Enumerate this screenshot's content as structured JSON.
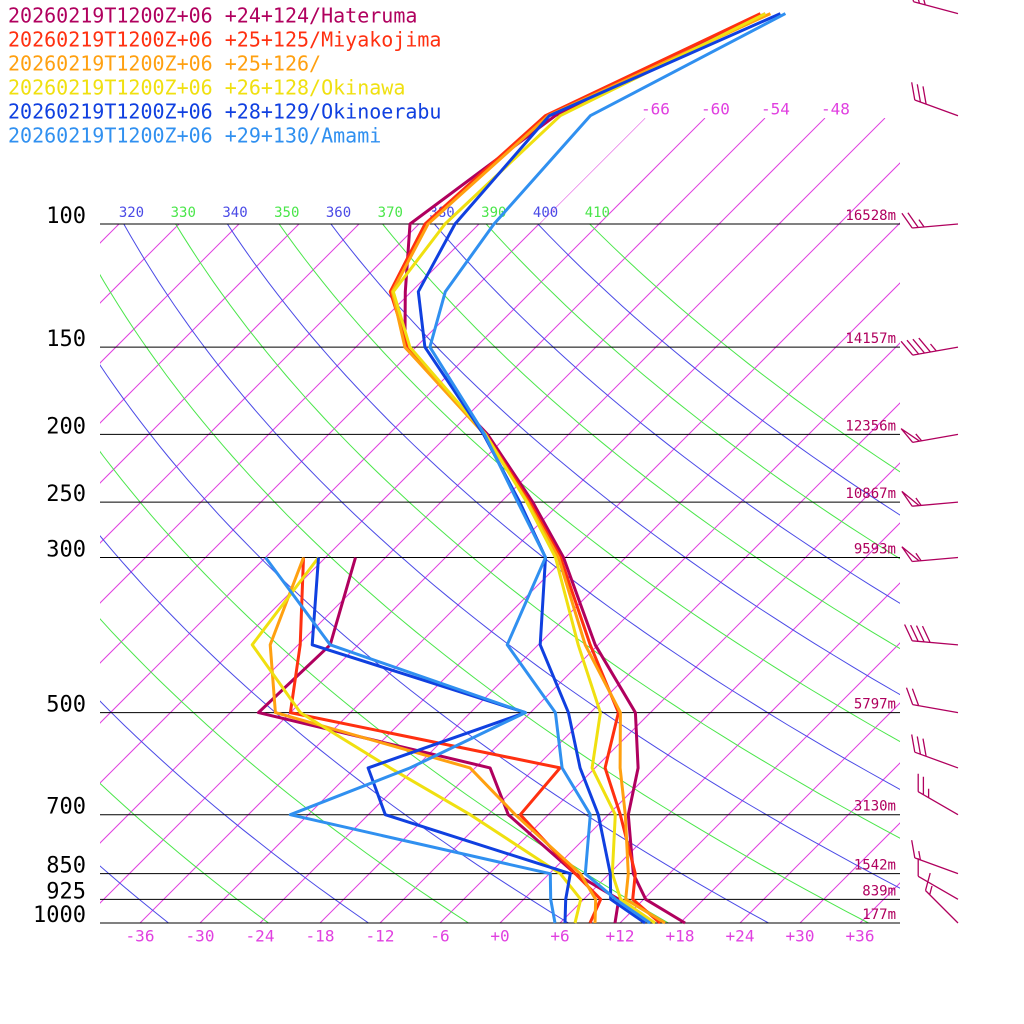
{
  "chart_data": {
    "type": "skewt",
    "skew_angle": 45,
    "log_y": true,
    "ylim": [
      1000,
      100
    ],
    "xlim": [
      -40,
      40
    ],
    "yticks": [
      100,
      150,
      200,
      250,
      300,
      500,
      700,
      850,
      925,
      1000
    ],
    "height_labels": [
      "16528m",
      "14157m",
      "12356m",
      "10867m",
      "9593m",
      "5797m",
      "3130m",
      "1542m",
      "839m",
      "177m"
    ],
    "xticks": [
      -36,
      -30,
      -24,
      -18,
      -12,
      -6,
      {
        "value": 0,
        "label": "+0"
      },
      {
        "value": 6,
        "label": "+6"
      },
      {
        "value": 12,
        "label": "+12"
      },
      {
        "value": 18,
        "label": "+18"
      },
      {
        "value": 24,
        "label": "+24"
      },
      {
        "value": 30,
        "label": "+30"
      },
      {
        "value": 36,
        "label": "+36"
      }
    ],
    "isotherm_labels": [
      -66,
      -60,
      -54,
      -48
    ],
    "theta_labels": [
      320,
      330,
      340,
      350,
      360,
      370,
      380,
      390,
      400,
      410
    ],
    "isotherm_color": "#e040e0",
    "theta_colors": [
      "#4a4ae6",
      "#4ae64a"
    ],
    "pressure": [
      1000,
      925,
      850,
      700,
      600,
      500,
      400,
      300,
      250,
      200,
      150,
      125,
      100,
      70,
      50
    ],
    "series": [
      {
        "name": "20260219T1200Z+06 +24+124/Hateruma",
        "color": "#b0005e",
        "temperature": [
          18.5,
          12.2,
          8.4,
          2.0,
          -1.7,
          -7.5,
          -18.3,
          -30.2,
          -38.8,
          -50.1,
          -67.1,
          -72.6,
          -78.9,
          -75.2,
          -64.4
        ],
        "dewpoint": [
          11.5,
          9.5,
          2.6,
          -10.0,
          -16.5,
          -45.2,
          -44.8,
          -51.0,
          null,
          null,
          null,
          null,
          null,
          null,
          null
        ]
      },
      {
        "name": "20260219T1200Z+06 +25+125/Miyakojima",
        "color": "#ff3010",
        "temperature": [
          16.0,
          10.9,
          8.6,
          1.2,
          -5.0,
          -9.2,
          -18.8,
          -30.5,
          -39.1,
          -50.3,
          -66.8,
          -74.1,
          -77.4,
          -76.2,
          -64.9
        ],
        "dewpoint": [
          9.0,
          7.7,
          2.6,
          -8.8,
          -9.5,
          -42.0,
          -47.8,
          -56.2,
          null,
          null,
          null,
          null,
          null,
          null,
          null
        ]
      },
      {
        "name": "20260219T1200Z+06 +25+126/",
        "color": "#ffa010",
        "temperature": [
          16.5,
          10.2,
          7.9,
          1.7,
          -3.5,
          -9.0,
          -19.3,
          -30.7,
          -39.3,
          -50.4,
          -67.1,
          -73.9,
          -77.1,
          -75.9,
          -63.9
        ],
        "dewpoint": [
          9.5,
          7.2,
          3.1,
          -9.3,
          -18.5,
          -43.5,
          -50.8,
          -56.2,
          null,
          null,
          null,
          null,
          null,
          null,
          null
        ]
      },
      {
        "name": "20260219T1200Z+06 +26+128/Okinawa",
        "color": "#f0e010",
        "temperature": [
          15.5,
          9.7,
          6.3,
          0.7,
          -6.3,
          -11.0,
          -20.0,
          -31.0,
          -39.4,
          -50.3,
          -66.6,
          -73.8,
          -75.4,
          -74.7,
          -64.4
        ],
        "dewpoint": [
          7.5,
          5.7,
          1.1,
          -13.8,
          -26.5,
          -41.0,
          -52.6,
          -54.7,
          null,
          null,
          null,
          null,
          null,
          null,
          null
        ]
      },
      {
        "name": "20260219T1200Z+06 +28+129/Okinoerabu",
        "color": "#1040e0",
        "temperature": [
          14.5,
          8.7,
          6.1,
          -1.0,
          -7.5,
          -14.2,
          -23.8,
          -32.0,
          -40.1,
          -50.5,
          -65.1,
          -71.3,
          -74.4,
          -75.8,
          -62.9
        ],
        "dewpoint": [
          6.5,
          4.2,
          2.1,
          -22.3,
          -28.7,
          -18.5,
          -46.6,
          -54.7,
          null,
          null,
          null,
          null,
          null,
          null,
          null
        ]
      },
      {
        "name": "20260219T1200Z+06 +29+130/Amami",
        "color": "#3090f0",
        "temperature": [
          15.0,
          9.2,
          3.6,
          -1.8,
          -9.3,
          -15.5,
          -27.1,
          -32.0,
          -40.3,
          -50.4,
          -64.6,
          -68.6,
          -70.5,
          -71.7,
          -62.4
        ],
        "dewpoint": [
          5.5,
          2.7,
          0.1,
          -31.8,
          -24.5,
          -18.5,
          -44.8,
          -60.0,
          null,
          null,
          null,
          null,
          null,
          null,
          null
        ]
      }
    ],
    "winds": {
      "color": "#b0005e",
      "pressure": [
        1000,
        925,
        850,
        700,
        600,
        500,
        400,
        300,
        250,
        200,
        150,
        100,
        70,
        50
      ],
      "direction": [
        315,
        300,
        290,
        300,
        290,
        280,
        275,
        265,
        265,
        260,
        260,
        265,
        290,
        285
      ],
      "speed": [
        15,
        10,
        15,
        25,
        30,
        20,
        40,
        55,
        55,
        55,
        45,
        25,
        30,
        30
      ]
    }
  }
}
